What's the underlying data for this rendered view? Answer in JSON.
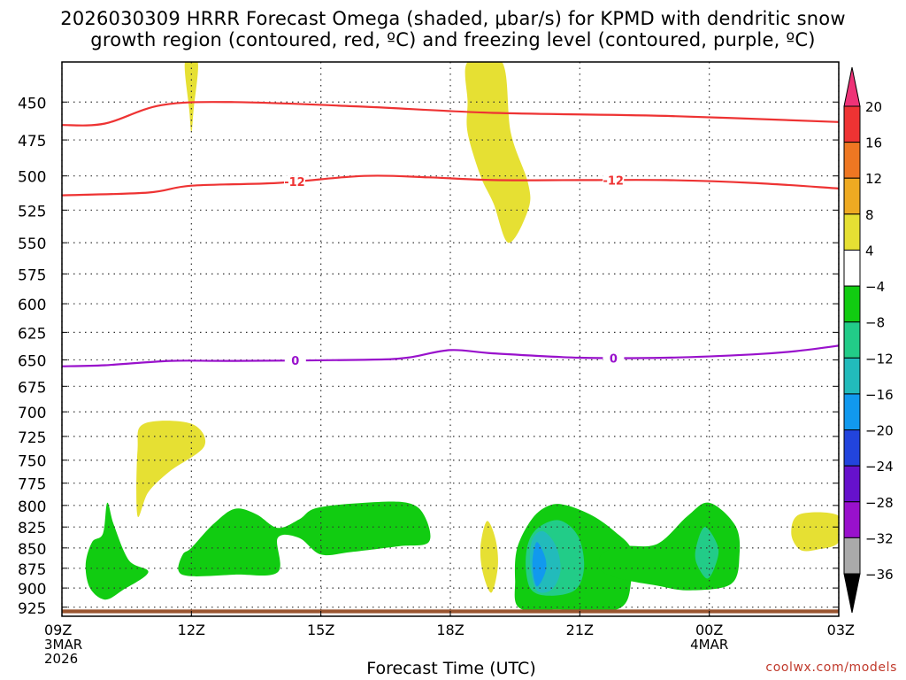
{
  "chart_data": {
    "type": "time-height cross section",
    "title_line1": "2026030309 HRRR Forecast Omega (shaded, μbar/s) for KPMD with dendritic snow",
    "title_line2": "growth region (contoured, red, ºC) and freezing level (contoured, purple, ºC)",
    "xlabel": "Forecast Time (UTC)",
    "credit": "coolwx.com/models",
    "x_ticks": [
      {
        "hour": 0,
        "label": "09Z",
        "sub": [
          "3MAR",
          "2026"
        ]
      },
      {
        "hour": 3,
        "label": "12Z",
        "sub": []
      },
      {
        "hour": 6,
        "label": "15Z",
        "sub": []
      },
      {
        "hour": 9,
        "label": "18Z",
        "sub": []
      },
      {
        "hour": 12,
        "label": "21Z",
        "sub": []
      },
      {
        "hour": 15,
        "label": "00Z",
        "sub": [
          "4MAR"
        ]
      },
      {
        "hour": 18,
        "label": "03Z",
        "sub": []
      }
    ],
    "x_range_hours": [
      0,
      18
    ],
    "y_levels_hpa": [
      450,
      475,
      500,
      525,
      550,
      575,
      600,
      625,
      650,
      675,
      700,
      725,
      750,
      775,
      800,
      825,
      850,
      875,
      900,
      925
    ],
    "y_range_hpa": [
      425,
      937
    ],
    "colorbar": {
      "labels": [
        "20",
        "16",
        "12",
        "8",
        "4",
        "−4",
        "−8",
        "−12",
        "−16",
        "−20",
        "−24",
        "−28",
        "−32",
        "−36"
      ],
      "colors_top_to_bottom": [
        "#ee3377",
        "#ee3333",
        "#ee7722",
        "#eeaa22",
        "#e6e033",
        "#ffffff",
        "#11cc11",
        "#22cc88",
        "#22bbbb",
        "#1199ee",
        "#2244dd",
        "#6611cc",
        "#9911cc",
        "#aaaaaa",
        "#000000"
      ]
    },
    "contours": [
      {
        "name": "dendritic-upper",
        "value": -12,
        "color": "#ee3333",
        "labels": [],
        "points": [
          [
            0,
            465
          ],
          [
            1,
            464
          ],
          [
            2.3,
            452
          ],
          [
            4,
            450
          ],
          [
            7,
            453
          ],
          [
            10,
            457
          ],
          [
            14,
            459
          ],
          [
            18,
            463
          ]
        ]
      },
      {
        "name": "dendritic-lower",
        "value": -12,
        "color": "#ee3333",
        "labels": [
          "-12",
          "-12"
        ],
        "points": [
          [
            0,
            514
          ],
          [
            2,
            512
          ],
          [
            3,
            507
          ],
          [
            5,
            505
          ],
          [
            7,
            500
          ],
          [
            8.5,
            501
          ],
          [
            10,
            503
          ],
          [
            12,
            503
          ],
          [
            14,
            503
          ],
          [
            16,
            505
          ],
          [
            18,
            509
          ]
        ]
      },
      {
        "name": "freezing-level",
        "value": 0,
        "color": "#9911cc",
        "labels": [
          "0",
          "0"
        ],
        "points": [
          [
            0,
            656
          ],
          [
            1,
            655
          ],
          [
            2.5,
            651
          ],
          [
            4,
            651
          ],
          [
            7,
            650
          ],
          [
            8,
            648
          ],
          [
            9,
            641
          ],
          [
            10,
            644
          ],
          [
            12,
            648
          ],
          [
            14,
            648
          ],
          [
            16,
            645
          ],
          [
            17,
            642
          ],
          [
            18,
            637
          ]
        ]
      }
    ],
    "shaded_regions": [
      {
        "name": "yellow-top-thin",
        "value": 6,
        "color": "#e6e033",
        "points": [
          [
            2.85,
            425
          ],
          [
            3.15,
            425
          ],
          [
            3.05,
            455
          ],
          [
            3.0,
            470
          ],
          [
            2.95,
            455
          ]
        ]
      },
      {
        "name": "yellow-top-plume",
        "value": 6,
        "color": "#e6e033",
        "points": [
          [
            9.4,
            425
          ],
          [
            10.2,
            425
          ],
          [
            10.4,
            470
          ],
          [
            10.8,
            505
          ],
          [
            10.8,
            525
          ],
          [
            10.35,
            550
          ],
          [
            10.0,
            520
          ],
          [
            9.7,
            500
          ],
          [
            9.4,
            470
          ],
          [
            9.4,
            450
          ]
        ]
      },
      {
        "name": "yellow-mid-left",
        "value": 6,
        "color": "#e6e033",
        "points": [
          [
            1.9,
            712
          ],
          [
            3.0,
            712
          ],
          [
            3.3,
            735
          ],
          [
            2.5,
            762
          ],
          [
            2.0,
            785
          ],
          [
            1.75,
            812
          ],
          [
            1.75,
            740
          ]
        ]
      },
      {
        "name": "green-left",
        "value": -6,
        "color": "#11cc11",
        "points": [
          [
            1.05,
            797
          ],
          [
            1.2,
            822
          ],
          [
            1.55,
            865
          ],
          [
            2.0,
            880
          ],
          [
            1.4,
            903
          ],
          [
            1.0,
            915
          ],
          [
            0.65,
            900
          ],
          [
            0.55,
            870
          ],
          [
            0.7,
            843
          ],
          [
            0.95,
            833
          ]
        ]
      },
      {
        "name": "green-center",
        "value": -6,
        "color": "#11cc11",
        "points": [
          [
            3.0,
            850
          ],
          [
            3.5,
            822
          ],
          [
            4.0,
            804
          ],
          [
            4.5,
            810
          ],
          [
            5.0,
            826
          ],
          [
            5.5,
            816
          ],
          [
            5.9,
            803
          ],
          [
            7.0,
            797
          ],
          [
            8.0,
            797
          ],
          [
            8.4,
            812
          ],
          [
            8.5,
            843
          ],
          [
            7.8,
            848
          ],
          [
            6.7,
            855
          ],
          [
            6.0,
            858
          ],
          [
            5.5,
            838
          ],
          [
            5.0,
            838
          ],
          [
            5.0,
            880
          ],
          [
            4.0,
            883
          ],
          [
            3.0,
            885
          ],
          [
            2.7,
            878
          ],
          [
            2.8,
            858
          ]
        ]
      },
      {
        "name": "yellow-bottom-center",
        "value": 6,
        "color": "#e6e033",
        "points": [
          [
            9.85,
            818
          ],
          [
            10.05,
            840
          ],
          [
            10.1,
            873
          ],
          [
            9.95,
            906
          ],
          [
            9.75,
            880
          ],
          [
            9.7,
            848
          ]
        ]
      },
      {
        "name": "green-core",
        "value": -6,
        "color": "#11cc11",
        "points": [
          [
            11.7,
            800
          ],
          [
            12.3,
            812
          ],
          [
            12.8,
            830
          ],
          [
            13.2,
            852
          ],
          [
            13.2,
            888
          ],
          [
            12.9,
            927
          ],
          [
            11.5,
            928
          ],
          [
            10.6,
            926
          ],
          [
            10.5,
            890
          ],
          [
            10.55,
            850
          ],
          [
            10.9,
            815
          ],
          [
            11.3,
            800
          ]
        ]
      },
      {
        "name": "teal-core",
        "value": -10,
        "color": "#22cc88",
        "points": [
          [
            11.5,
            817
          ],
          [
            11.95,
            835
          ],
          [
            12.1,
            872
          ],
          [
            11.9,
            902
          ],
          [
            11.3,
            910
          ],
          [
            10.85,
            900
          ],
          [
            10.75,
            860
          ],
          [
            10.95,
            830
          ]
        ]
      },
      {
        "name": "cyan-core",
        "value": -14,
        "color": "#22bbbb",
        "points": [
          [
            11.15,
            830
          ],
          [
            11.45,
            848
          ],
          [
            11.55,
            878
          ],
          [
            11.35,
            902
          ],
          [
            11.0,
            903
          ],
          [
            10.85,
            870
          ],
          [
            10.9,
            840
          ]
        ]
      },
      {
        "name": "blue-core",
        "value": -17,
        "color": "#1199ee",
        "points": [
          [
            11.0,
            843
          ],
          [
            11.2,
            862
          ],
          [
            11.2,
            880
          ],
          [
            11.0,
            898
          ],
          [
            10.9,
            870
          ]
        ]
      },
      {
        "name": "green-right",
        "value": -6,
        "color": "#11cc11",
        "points": [
          [
            14.5,
            812
          ],
          [
            15.0,
            797
          ],
          [
            15.6,
            823
          ],
          [
            15.7,
            858
          ],
          [
            15.5,
            895
          ],
          [
            14.5,
            903
          ],
          [
            13.8,
            897
          ],
          [
            13.0,
            889
          ],
          [
            12.5,
            878
          ],
          [
            12.5,
            858
          ],
          [
            13.0,
            848
          ],
          [
            13.8,
            845
          ]
        ]
      },
      {
        "name": "teal-right",
        "value": -10,
        "color": "#22cc88",
        "points": [
          [
            14.9,
            825
          ],
          [
            15.2,
            848
          ],
          [
            15.15,
            870
          ],
          [
            14.95,
            888
          ],
          [
            14.7,
            868
          ],
          [
            14.7,
            848
          ]
        ]
      },
      {
        "name": "yellow-right",
        "value": 6,
        "color": "#e6e033",
        "points": [
          [
            17.1,
            810
          ],
          [
            18.0,
            812
          ],
          [
            18.0,
            843
          ],
          [
            17.5,
            852
          ],
          [
            17.1,
            852
          ],
          [
            16.9,
            832
          ]
        ]
      }
    ],
    "terrain": {
      "color": "#9a5530",
      "top_hpa": 928,
      "bottom_hpa": 933
    }
  }
}
